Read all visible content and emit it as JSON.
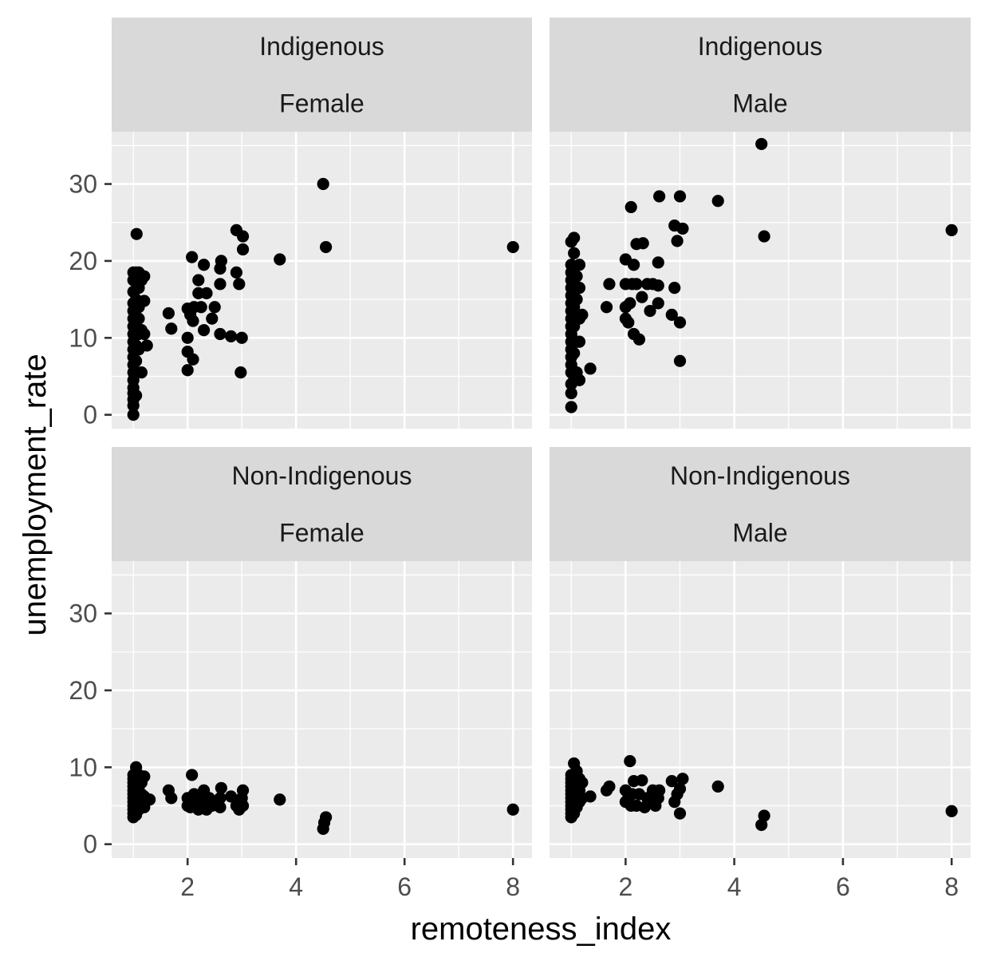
{
  "chart_data": {
    "type": "scatter",
    "xlabel": "remoteness_index",
    "ylabel": "unemployment_rate",
    "xlim": [
      0.6,
      8.35
    ],
    "ylim": [
      -1.8,
      36.8
    ],
    "x_ticks": [
      2,
      4,
      6,
      8
    ],
    "y_ticks": [
      0,
      10,
      20,
      30
    ],
    "grid": true,
    "point_color": "#000000",
    "panel_background": "#ebebeb",
    "strip_background": "#d9d9d9",
    "facets": [
      {
        "strip": [
          "Indigenous",
          "Female"
        ],
        "points": [
          [
            1.0,
            0.0
          ],
          [
            1.0,
            1.2
          ],
          [
            1.0,
            2.0
          ],
          [
            1.0,
            2.8
          ],
          [
            1.0,
            3.5
          ],
          [
            1.0,
            4.5
          ],
          [
            1.0,
            5.5
          ],
          [
            1.0,
            6.5
          ],
          [
            1.0,
            7.5
          ],
          [
            1.0,
            8.5
          ],
          [
            1.0,
            9.5
          ],
          [
            1.0,
            10.5
          ],
          [
            1.0,
            11.5
          ],
          [
            1.0,
            12.5
          ],
          [
            1.0,
            13.5
          ],
          [
            1.0,
            14.5
          ],
          [
            1.0,
            16.0
          ],
          [
            1.0,
            17.5
          ],
          [
            1.0,
            18.5
          ],
          [
            1.05,
            2.5
          ],
          [
            1.05,
            7.0
          ],
          [
            1.05,
            9.0
          ],
          [
            1.05,
            12.0
          ],
          [
            1.05,
            15.0
          ],
          [
            1.05,
            18.5
          ],
          [
            1.06,
            23.5
          ],
          [
            1.1,
            8.5
          ],
          [
            1.1,
            10.5
          ],
          [
            1.1,
            12.5
          ],
          [
            1.1,
            14.0
          ],
          [
            1.1,
            16.5
          ],
          [
            1.1,
            18.5
          ],
          [
            1.15,
            5.5
          ],
          [
            1.15,
            11.0
          ],
          [
            1.15,
            17.5
          ],
          [
            1.2,
            10.5
          ],
          [
            1.2,
            14.8
          ],
          [
            1.2,
            18.0
          ],
          [
            1.25,
            9.0
          ],
          [
            1.65,
            13.2
          ],
          [
            1.7,
            11.2
          ],
          [
            2.0,
            5.8
          ],
          [
            2.0,
            8.2
          ],
          [
            2.0,
            10.0
          ],
          [
            2.0,
            13.8
          ],
          [
            2.05,
            13.0
          ],
          [
            2.08,
            20.5
          ],
          [
            2.1,
            7.2
          ],
          [
            2.1,
            12.2
          ],
          [
            2.12,
            14.0
          ],
          [
            2.2,
            15.8
          ],
          [
            2.2,
            17.5
          ],
          [
            2.25,
            14.0
          ],
          [
            2.3,
            11.0
          ],
          [
            2.3,
            19.5
          ],
          [
            2.35,
            15.8
          ],
          [
            2.45,
            12.5
          ],
          [
            2.5,
            14.0
          ],
          [
            2.6,
            10.5
          ],
          [
            2.6,
            17.0
          ],
          [
            2.6,
            19.0
          ],
          [
            2.62,
            20.0
          ],
          [
            2.8,
            10.2
          ],
          [
            2.9,
            18.5
          ],
          [
            2.9,
            24.0
          ],
          [
            2.95,
            17.0
          ],
          [
            2.98,
            5.5
          ],
          [
            3.0,
            10.0
          ],
          [
            3.02,
            21.5
          ],
          [
            3.02,
            23.2
          ],
          [
            3.7,
            20.2
          ],
          [
            4.5,
            30.0
          ],
          [
            4.55,
            21.8
          ],
          [
            8.0,
            21.8
          ]
        ]
      },
      {
        "strip": [
          "Indigenous",
          "Male"
        ],
        "points": [
          [
            1.0,
            1.0
          ],
          [
            1.0,
            2.8
          ],
          [
            1.0,
            4.0
          ],
          [
            1.0,
            5.5
          ],
          [
            1.0,
            6.5
          ],
          [
            1.0,
            7.5
          ],
          [
            1.0,
            8.5
          ],
          [
            1.0,
            9.5
          ],
          [
            1.0,
            10.5
          ],
          [
            1.0,
            11.5
          ],
          [
            1.0,
            12.5
          ],
          [
            1.0,
            13.5
          ],
          [
            1.0,
            14.5
          ],
          [
            1.0,
            15.5
          ],
          [
            1.0,
            16.5
          ],
          [
            1.0,
            17.5
          ],
          [
            1.0,
            18.5
          ],
          [
            1.0,
            19.5
          ],
          [
            1.0,
            22.5
          ],
          [
            1.05,
            4.5
          ],
          [
            1.05,
            8.0
          ],
          [
            1.05,
            11.5
          ],
          [
            1.05,
            14.0
          ],
          [
            1.05,
            17.5
          ],
          [
            1.05,
            21.0
          ],
          [
            1.05,
            23.0
          ],
          [
            1.1,
            5.5
          ],
          [
            1.1,
            9.5
          ],
          [
            1.1,
            13.0
          ],
          [
            1.1,
            15.0
          ],
          [
            1.1,
            18.0
          ],
          [
            1.15,
            4.5
          ],
          [
            1.15,
            9.5
          ],
          [
            1.15,
            12.5
          ],
          [
            1.15,
            16.5
          ],
          [
            1.15,
            19.5
          ],
          [
            1.2,
            13.0
          ],
          [
            1.35,
            6.0
          ],
          [
            1.65,
            14.0
          ],
          [
            1.7,
            17.0
          ],
          [
            2.0,
            12.5
          ],
          [
            2.0,
            14.0
          ],
          [
            2.0,
            17.0
          ],
          [
            2.0,
            20.2
          ],
          [
            2.05,
            12.0
          ],
          [
            2.08,
            14.5
          ],
          [
            2.1,
            27.0
          ],
          [
            2.12,
            17.0
          ],
          [
            2.15,
            19.5
          ],
          [
            2.15,
            10.5
          ],
          [
            2.2,
            17.0
          ],
          [
            2.2,
            22.2
          ],
          [
            2.25,
            9.8
          ],
          [
            2.3,
            15.3
          ],
          [
            2.32,
            22.3
          ],
          [
            2.4,
            17.0
          ],
          [
            2.45,
            13.5
          ],
          [
            2.5,
            17.0
          ],
          [
            2.6,
            14.5
          ],
          [
            2.6,
            16.8
          ],
          [
            2.6,
            19.8
          ],
          [
            2.62,
            28.4
          ],
          [
            2.85,
            13.0
          ],
          [
            2.9,
            16.5
          ],
          [
            2.9,
            24.6
          ],
          [
            2.95,
            22.6
          ],
          [
            3.0,
            7.0
          ],
          [
            3.0,
            12.0
          ],
          [
            3.0,
            28.4
          ],
          [
            3.05,
            24.2
          ],
          [
            3.7,
            27.8
          ],
          [
            4.5,
            35.2
          ],
          [
            4.55,
            23.2
          ],
          [
            8.0,
            24.0
          ]
        ]
      },
      {
        "strip": [
          "Non-Indigenous",
          "Female"
        ],
        "points": [
          [
            1.0,
            3.5
          ],
          [
            1.0,
            4.0
          ],
          [
            1.0,
            4.5
          ],
          [
            1.0,
            5.0
          ],
          [
            1.0,
            5.5
          ],
          [
            1.0,
            6.0
          ],
          [
            1.0,
            6.5
          ],
          [
            1.0,
            7.0
          ],
          [
            1.0,
            7.5
          ],
          [
            1.0,
            8.0
          ],
          [
            1.0,
            8.5
          ],
          [
            1.0,
            9.0
          ],
          [
            1.05,
            3.8
          ],
          [
            1.05,
            5.2
          ],
          [
            1.05,
            6.8
          ],
          [
            1.05,
            8.2
          ],
          [
            1.05,
            10.0
          ],
          [
            1.1,
            4.5
          ],
          [
            1.1,
            6.0
          ],
          [
            1.1,
            7.5
          ],
          [
            1.1,
            9.0
          ],
          [
            1.15,
            5.0
          ],
          [
            1.15,
            6.5
          ],
          [
            1.15,
            8.0
          ],
          [
            1.2,
            4.8
          ],
          [
            1.2,
            6.2
          ],
          [
            1.2,
            8.8
          ],
          [
            1.3,
            5.8
          ],
          [
            1.65,
            7.0
          ],
          [
            1.7,
            6.0
          ],
          [
            2.0,
            5.0
          ],
          [
            2.0,
            6.0
          ],
          [
            2.05,
            4.8
          ],
          [
            2.08,
            9.0
          ],
          [
            2.1,
            5.5
          ],
          [
            2.12,
            6.5
          ],
          [
            2.2,
            4.5
          ],
          [
            2.2,
            6.0
          ],
          [
            2.25,
            5.0
          ],
          [
            2.3,
            7.0
          ],
          [
            2.3,
            5.5
          ],
          [
            2.35,
            4.5
          ],
          [
            2.4,
            6.0
          ],
          [
            2.45,
            5.0
          ],
          [
            2.5,
            5.5
          ],
          [
            2.6,
            4.8
          ],
          [
            2.6,
            6.0
          ],
          [
            2.62,
            7.3
          ],
          [
            2.8,
            6.2
          ],
          [
            2.9,
            5.0
          ],
          [
            2.95,
            4.5
          ],
          [
            3.0,
            6.0
          ],
          [
            3.02,
            5.0
          ],
          [
            3.02,
            7.0
          ],
          [
            3.7,
            5.8
          ],
          [
            4.5,
            2.0
          ],
          [
            4.52,
            2.8
          ],
          [
            4.55,
            3.5
          ],
          [
            8.0,
            4.5
          ]
        ]
      },
      {
        "strip": [
          "Non-Indigenous",
          "Male"
        ],
        "points": [
          [
            1.0,
            3.5
          ],
          [
            1.0,
            4.0
          ],
          [
            1.0,
            4.5
          ],
          [
            1.0,
            5.0
          ],
          [
            1.0,
            5.5
          ],
          [
            1.0,
            6.0
          ],
          [
            1.0,
            6.5
          ],
          [
            1.0,
            7.0
          ],
          [
            1.0,
            7.5
          ],
          [
            1.0,
            8.0
          ],
          [
            1.0,
            8.5
          ],
          [
            1.0,
            9.0
          ],
          [
            1.05,
            4.0
          ],
          [
            1.05,
            5.5
          ],
          [
            1.05,
            7.0
          ],
          [
            1.05,
            8.5
          ],
          [
            1.05,
            10.5
          ],
          [
            1.1,
            4.8
          ],
          [
            1.1,
            6.2
          ],
          [
            1.1,
            7.8
          ],
          [
            1.1,
            9.5
          ],
          [
            1.15,
            5.5
          ],
          [
            1.15,
            7.0
          ],
          [
            1.15,
            8.5
          ],
          [
            1.2,
            6.0
          ],
          [
            1.2,
            8.0
          ],
          [
            1.35,
            6.2
          ],
          [
            1.65,
            7.0
          ],
          [
            1.7,
            7.5
          ],
          [
            2.0,
            5.5
          ],
          [
            2.0,
            7.0
          ],
          [
            2.05,
            6.0
          ],
          [
            2.08,
            10.8
          ],
          [
            2.1,
            5.0
          ],
          [
            2.12,
            6.5
          ],
          [
            2.15,
            8.2
          ],
          [
            2.2,
            5.0
          ],
          [
            2.25,
            6.5
          ],
          [
            2.3,
            8.3
          ],
          [
            2.35,
            4.8
          ],
          [
            2.4,
            6.0
          ],
          [
            2.45,
            5.5
          ],
          [
            2.5,
            7.0
          ],
          [
            2.55,
            5.0
          ],
          [
            2.6,
            6.0
          ],
          [
            2.62,
            7.0
          ],
          [
            2.85,
            8.2
          ],
          [
            2.9,
            5.5
          ],
          [
            2.95,
            6.5
          ],
          [
            3.0,
            4.0
          ],
          [
            3.0,
            7.2
          ],
          [
            3.05,
            8.5
          ],
          [
            3.7,
            7.5
          ],
          [
            4.5,
            2.5
          ],
          [
            4.55,
            3.7
          ],
          [
            8.0,
            4.3
          ]
        ]
      }
    ]
  }
}
